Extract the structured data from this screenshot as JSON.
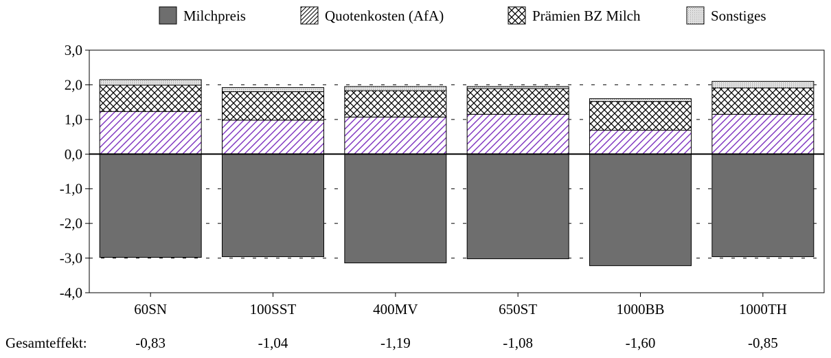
{
  "chart_data": {
    "type": "bar",
    "stacked": true,
    "categories": [
      "60SN",
      "100SST",
      "400MV",
      "650ST",
      "1000BB",
      "1000TH"
    ],
    "series": [
      {
        "name": "Milchpreis",
        "color": "#6e6e6e",
        "pattern": "solid",
        "values": [
          -2.98,
          -2.96,
          -3.14,
          -3.02,
          -3.22,
          -2.96
        ]
      },
      {
        "name": "Quotenkosten (AfA)",
        "color": "#7b2fbe",
        "pattern": "diagonal-hatch",
        "values": [
          1.23,
          0.98,
          1.07,
          1.15,
          0.69,
          1.15
        ]
      },
      {
        "name": "Prämien BZ Milch",
        "color": "#000000",
        "pattern": "crosshatch",
        "values": [
          0.76,
          0.82,
          0.76,
          0.74,
          0.83,
          0.76
        ]
      },
      {
        "name": "Sonstiges",
        "color": "#9a9a9a",
        "pattern": "dotted",
        "values": [
          0.16,
          0.12,
          0.12,
          0.06,
          0.08,
          0.19
        ]
      }
    ],
    "yticks": [
      "3,0",
      "2,0",
      "1,0",
      "0,0",
      "-1,0",
      "-2,0",
      "-3,0",
      "-4,0"
    ],
    "ylim": [
      -4.0,
      3.0
    ],
    "title": "",
    "xlabel": "",
    "ylabel": "",
    "legend_position": "top",
    "gridlines": "dashed-horizontal",
    "gesamteffekt": {
      "label": "Gesamteffekt:",
      "values": [
        "-0,83",
        "-1,04",
        "-1,19",
        "-1,08",
        "-1,60",
        "-0,85"
      ]
    }
  }
}
